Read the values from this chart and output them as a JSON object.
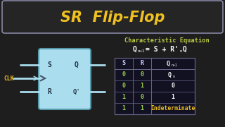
{
  "bg_color": "#1e1e1e",
  "title": "SR  Flip-Flop",
  "title_color": "#f0c020",
  "title_box_color": "#252525",
  "title_box_edge": "#9999bb",
  "char_eq_label": "Characteristic Equation",
  "char_eq_label_color": "#bbcc44",
  "clk_color": "#f0c020",
  "flip_flop_fill": "#aaddee",
  "flip_flop_edge": "#5599aa",
  "wire_color": "#aaddee",
  "table_edge_color": "#666688",
  "val_color": "#99cc44",
  "qn1_header_color": "#ffffff",
  "s_header_color": "#ccccff",
  "r_header_color": "#ccccff",
  "indeterminate_color": "#f0c020",
  "table_rows": [
    [
      "0",
      "0",
      "Qn",
      "white"
    ],
    [
      "0",
      "1",
      "0",
      "white"
    ],
    [
      "1",
      "0",
      "1",
      "white"
    ],
    [
      "1",
      "1",
      "Indeterminate",
      "#f0c020"
    ]
  ]
}
